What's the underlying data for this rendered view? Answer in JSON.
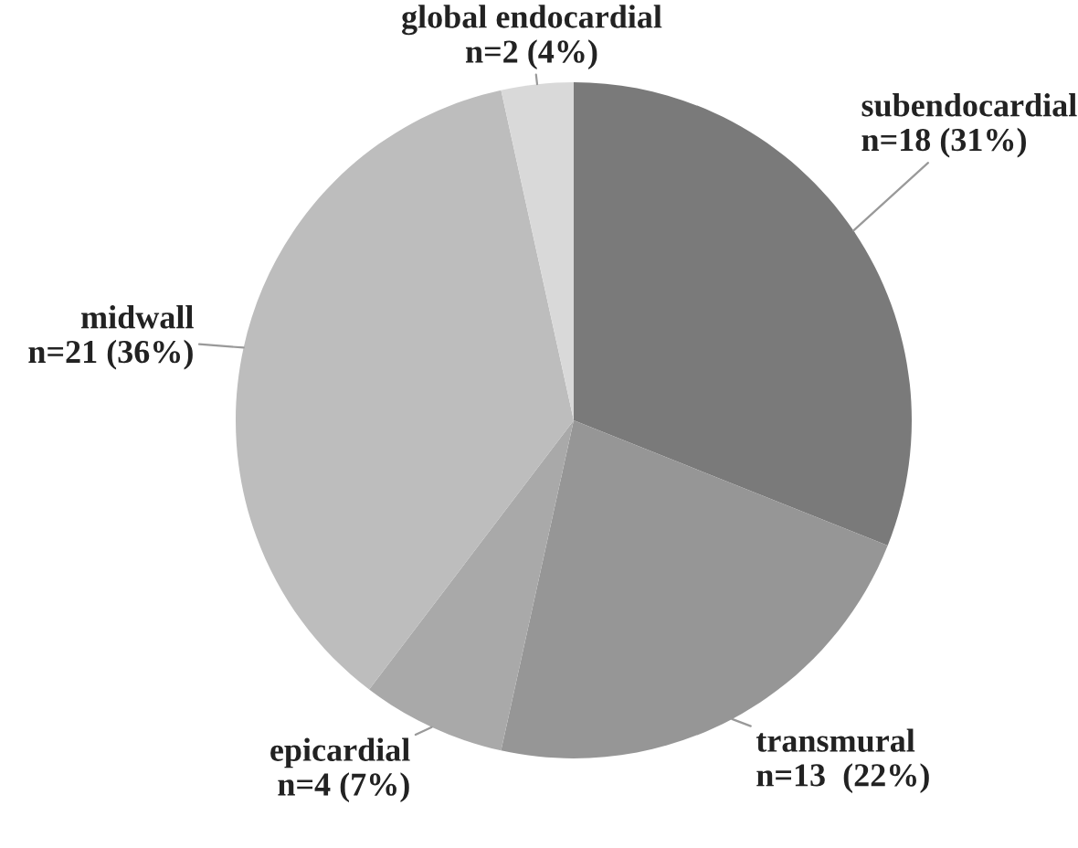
{
  "chart_data": {
    "type": "pie",
    "categories": [
      "subendocardial",
      "transmural",
      "epicardial",
      "midwall",
      "global endocardial"
    ],
    "values": [
      18,
      13,
      4,
      21,
      2
    ],
    "value_labels": [
      "n=18 (31%)",
      "n=13  (22%)",
      "n=4 (7%)",
      "n=21 (36%)",
      "n=2 (4%)"
    ],
    "colors": [
      "#7a7a7a",
      "#969696",
      "#a9a9a9",
      "#bdbdbd",
      "#d9d9d9"
    ]
  }
}
